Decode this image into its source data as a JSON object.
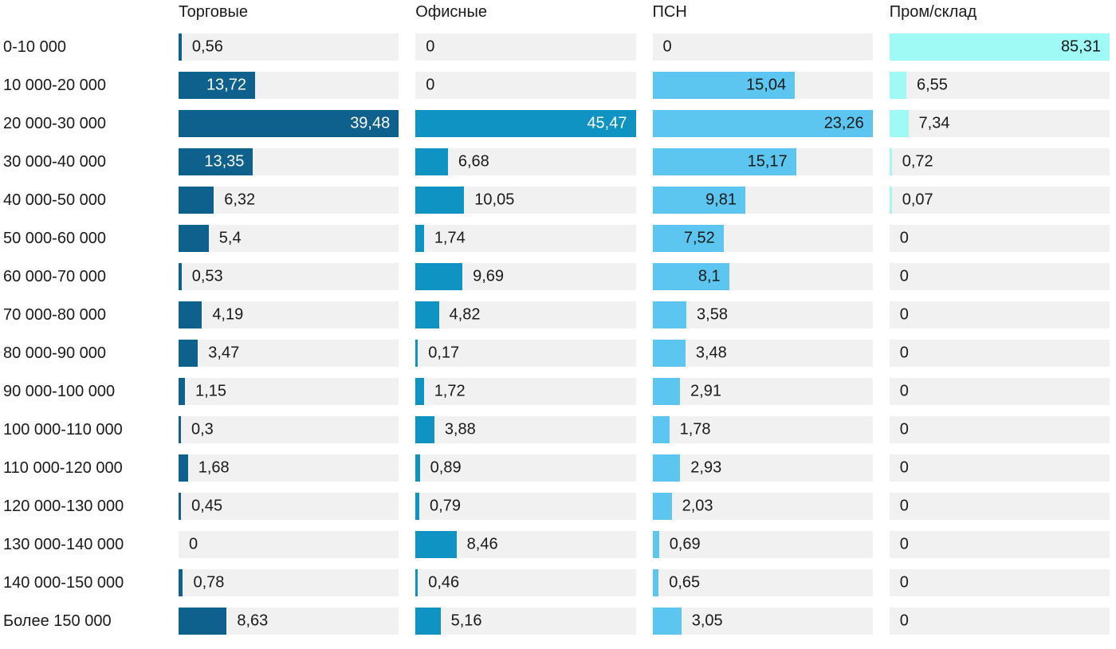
{
  "chart_data": {
    "type": "bar",
    "orientation": "horizontal",
    "title": "",
    "xlabel": "",
    "ylabel": "",
    "grid": false,
    "legend_position": "column-headers-top",
    "value_format": "comma-decimal",
    "track_color": "#f1f1f2",
    "outside_text_color": "#1a1a1a",
    "scaling": "each column normalized to its own max value",
    "categories": [
      "0-10 000",
      "10 000-20 000",
      "20 000-30 000",
      "30 000-40 000",
      "40 000-50 000",
      "50 000-60 000",
      "60 000-70 000",
      "70 000-80 000",
      "80 000-90 000",
      "90 000-100 000",
      "100 000-110 000",
      "110 000-120 000",
      "120 000-130 000",
      "130 000-140 000",
      "140 000-150 000",
      "Более 150 000"
    ],
    "series": [
      {
        "name": "Торговые",
        "color": "#0e618c",
        "text_color_on_bar": "#ffffff",
        "values": [
          0.56,
          13.72,
          39.48,
          13.35,
          6.32,
          5.4,
          0.53,
          4.19,
          3.47,
          1.15,
          0.3,
          1.68,
          0.45,
          0,
          0.78,
          8.63
        ]
      },
      {
        "name": "Офисные",
        "color": "#0f93c2",
        "text_color_on_bar": "#ffffff",
        "values": [
          0,
          0,
          45.47,
          6.68,
          10.05,
          1.74,
          9.69,
          4.82,
          0.17,
          1.72,
          3.88,
          0.89,
          0.79,
          8.46,
          0.46,
          5.16
        ]
      },
      {
        "name": "ПСН",
        "color": "#5cc6f0",
        "text_color_on_bar": "#1a1a1a",
        "values": [
          0,
          15.04,
          23.26,
          15.17,
          9.81,
          7.52,
          8.1,
          3.58,
          3.48,
          2.91,
          1.78,
          2.93,
          2.03,
          0.69,
          0.65,
          3.05
        ]
      },
      {
        "name": "Пром/склад",
        "color": "#9ffaf6",
        "text_color_on_bar": "#1a1a1a",
        "values": [
          85.31,
          6.55,
          7.34,
          0.72,
          0.07,
          0,
          0,
          0,
          0,
          0,
          0,
          0,
          0,
          0,
          0,
          0
        ]
      }
    ]
  }
}
